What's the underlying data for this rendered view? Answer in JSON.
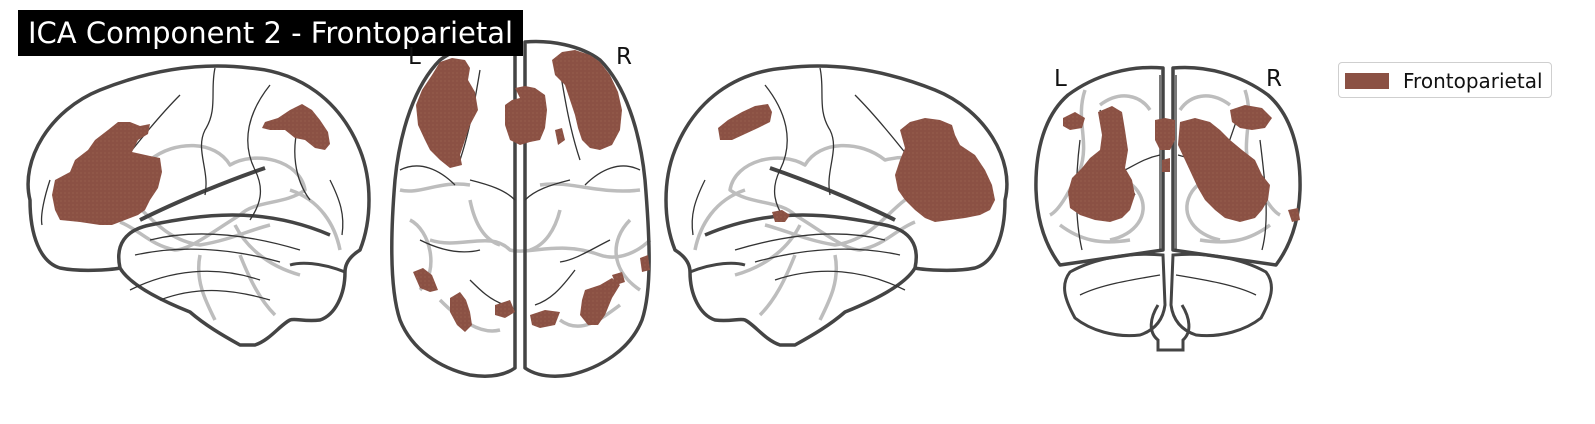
{
  "title": "ICA Component 2 - Frontoparietal",
  "colors": {
    "activation": "#8b5144",
    "outline": "#444444",
    "inner_line": "#333333",
    "gray_structure": "#bdbdbd"
  },
  "views": {
    "axial": {
      "left_label": "L",
      "right_label": "R"
    },
    "coronal": {
      "left_label": "L",
      "right_label": "R"
    }
  },
  "legend": {
    "items": [
      {
        "label": "Frontoparietal",
        "color": "#8b5144"
      }
    ]
  }
}
